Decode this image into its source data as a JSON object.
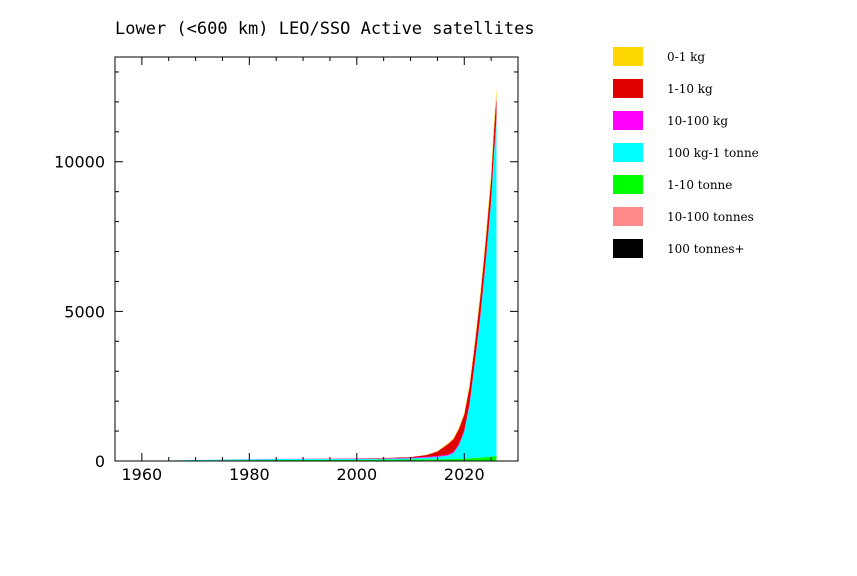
{
  "chart_data": {
    "type": "area",
    "title": "Lower (<600 km) LEO/SSO Active satellites",
    "xlabel": "",
    "ylabel": "",
    "xlim": [
      1955,
      2030
    ],
    "ylim": [
      0,
      13500
    ],
    "x_ticks": [
      1960,
      1980,
      2000,
      2020
    ],
    "y_ticks": [
      0,
      5000,
      10000
    ],
    "legend_position": "right",
    "grid": false,
    "x": [
      1958,
      1965,
      1970,
      1975,
      1980,
      1985,
      1990,
      1995,
      2000,
      2005,
      2010,
      2013,
      2015,
      2017,
      2018,
      2019,
      2020,
      2021,
      2022,
      2023,
      2024,
      2025,
      2025.5,
      2026
    ],
    "series": [
      {
        "name": "100 tonnes+",
        "color": "#000000",
        "values": [
          0,
          0,
          0,
          1,
          1,
          1,
          1,
          1,
          1,
          1,
          1,
          1,
          1,
          1,
          1,
          1,
          1,
          1,
          1,
          1,
          1,
          1,
          1,
          1
        ]
      },
      {
        "name": "10-100 tonnes",
        "color": "#ff8a8a",
        "values": [
          0,
          0,
          2,
          3,
          3,
          4,
          4,
          4,
          3,
          3,
          3,
          3,
          3,
          3,
          3,
          3,
          3,
          3,
          3,
          3,
          4,
          4,
          4,
          4
        ]
      },
      {
        "name": "1-10 tonne",
        "color": "#00ff00",
        "values": [
          2,
          8,
          15,
          20,
          25,
          30,
          32,
          35,
          38,
          40,
          45,
          50,
          55,
          60,
          65,
          70,
          75,
          85,
          95,
          110,
          125,
          140,
          150,
          160
        ]
      },
      {
        "name": "100 kg-1 tonne",
        "color": "#00ffff",
        "values": [
          3,
          8,
          15,
          20,
          25,
          30,
          30,
          30,
          30,
          30,
          40,
          60,
          80,
          120,
          200,
          450,
          900,
          1800,
          3200,
          4700,
          6500,
          8500,
          10000,
          11200
        ]
      },
      {
        "name": "10-100 kg",
        "color": "#ff00ff",
        "values": [
          0,
          0,
          2,
          5,
          5,
          6,
          8,
          10,
          12,
          15,
          20,
          25,
          30,
          35,
          40,
          45,
          50,
          60,
          70,
          80,
          90,
          100,
          110,
          120
        ]
      },
      {
        "name": "1-10 kg",
        "color": "#e00000",
        "values": [
          0,
          0,
          0,
          0,
          0,
          0,
          0,
          2,
          5,
          10,
          20,
          60,
          150,
          350,
          420,
          500,
          520,
          550,
          580,
          620,
          650,
          680,
          700,
          720
        ]
      },
      {
        "name": "0-1 kg",
        "color": "#ffd700",
        "values": [
          0,
          0,
          0,
          0,
          0,
          0,
          0,
          0,
          0,
          0,
          0,
          5,
          10,
          30,
          40,
          50,
          60,
          80,
          100,
          130,
          160,
          200,
          230,
          260
        ]
      }
    ],
    "legend": [
      {
        "label": "0-1 kg",
        "color": "#ffd700"
      },
      {
        "label": "1-10 kg",
        "color": "#e00000"
      },
      {
        "label": "10-100 kg",
        "color": "#ff00ff"
      },
      {
        "label": "100 kg-1 tonne",
        "color": "#00ffff"
      },
      {
        "label": "1-10 tonne",
        "color": "#00ff00"
      },
      {
        "label": "10-100 tonnes",
        "color": "#ff8a8a"
      },
      {
        "label": "100 tonnes+",
        "color": "#000000"
      }
    ]
  }
}
